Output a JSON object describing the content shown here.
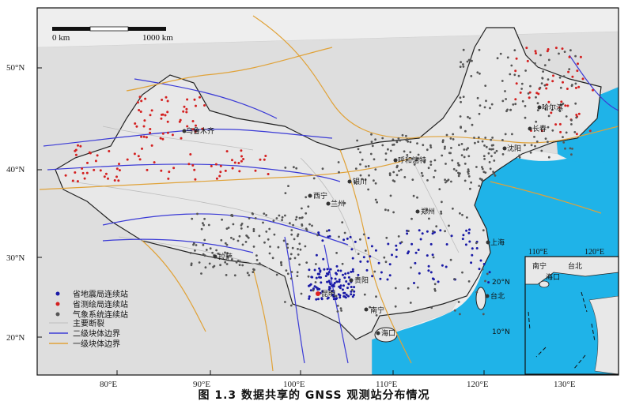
{
  "map": {
    "scale_bar": {
      "start_label": "0 km",
      "end_label": "1000 km"
    },
    "lat_labels": [
      "50°N",
      "40°N",
      "30°N",
      "20°N"
    ],
    "lon_labels": [
      "80°E",
      "90°E",
      "100°E",
      "110°E",
      "120°E",
      "130°E"
    ],
    "sea_labels": [
      "20°N",
      "10°N"
    ],
    "cities": [
      "乌鲁木齐",
      "呼和浩特",
      "银川",
      "西宁",
      "兰州",
      "拉萨",
      "贵阳",
      "昆明",
      "南宁",
      "海口",
      "台北",
      "上海",
      "郑州",
      "长春",
      "沈阳",
      "哈尔滨"
    ],
    "legend": [
      {
        "label": "省地震局连续站",
        "color": "#1a1aa6",
        "type": "dot"
      },
      {
        "label": "省测绘局连续站",
        "color": "#d42020",
        "type": "dot"
      },
      {
        "label": "气象系统连续站",
        "color": "#555555",
        "type": "dot"
      },
      {
        "label": "主要断裂",
        "color": "#c8c8c8",
        "type": "line"
      },
      {
        "label": "二级块体边界",
        "color": "#3b3bd6",
        "type": "line"
      },
      {
        "label": "一级块体边界",
        "color": "#e0a238",
        "type": "line"
      }
    ],
    "inset": {
      "lon_labels": [
        "110°E",
        "120°E"
      ],
      "cities": [
        "南宁",
        "海口",
        "台北"
      ]
    },
    "colors": {
      "sea": "#1fb3e8",
      "land": "#d9d9d9",
      "frame": "#111111"
    }
  },
  "caption": "图 1.3 数据共享的 GNSS 观测站分布情况"
}
